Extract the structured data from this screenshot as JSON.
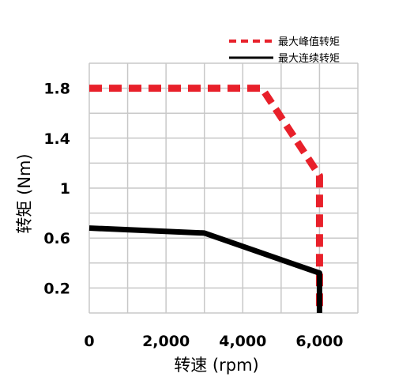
{
  "chart_data": {
    "type": "line",
    "xlabel": "转速 (rpm)",
    "ylabel": "转矩 (Nm)",
    "xlim": [
      0,
      7000
    ],
    "ylim": [
      0,
      2.0
    ],
    "x_ticks": [
      0,
      2000,
      4000,
      6000
    ],
    "x_tick_labels": [
      "0",
      "2,000",
      "4,000",
      "6,000"
    ],
    "y_ticks": [
      0.2,
      0.6,
      1,
      1.4,
      1.8
    ],
    "y_tick_labels": [
      "0.2",
      "0.6",
      "1",
      "1.4",
      "1.8"
    ],
    "grid": true,
    "legend_position": "top-right",
    "series": [
      {
        "name": "最大峰值转矩",
        "style": "dashed",
        "color": "#e8202a",
        "points": [
          [
            0,
            1.8
          ],
          [
            4500,
            1.8
          ],
          [
            6000,
            1.1
          ],
          [
            6000,
            0.0
          ]
        ]
      },
      {
        "name": "最大连续转矩",
        "style": "solid",
        "color": "#000000",
        "points": [
          [
            0,
            0.68
          ],
          [
            3000,
            0.64
          ],
          [
            6000,
            0.32
          ],
          [
            6000,
            0.0
          ]
        ]
      }
    ]
  }
}
